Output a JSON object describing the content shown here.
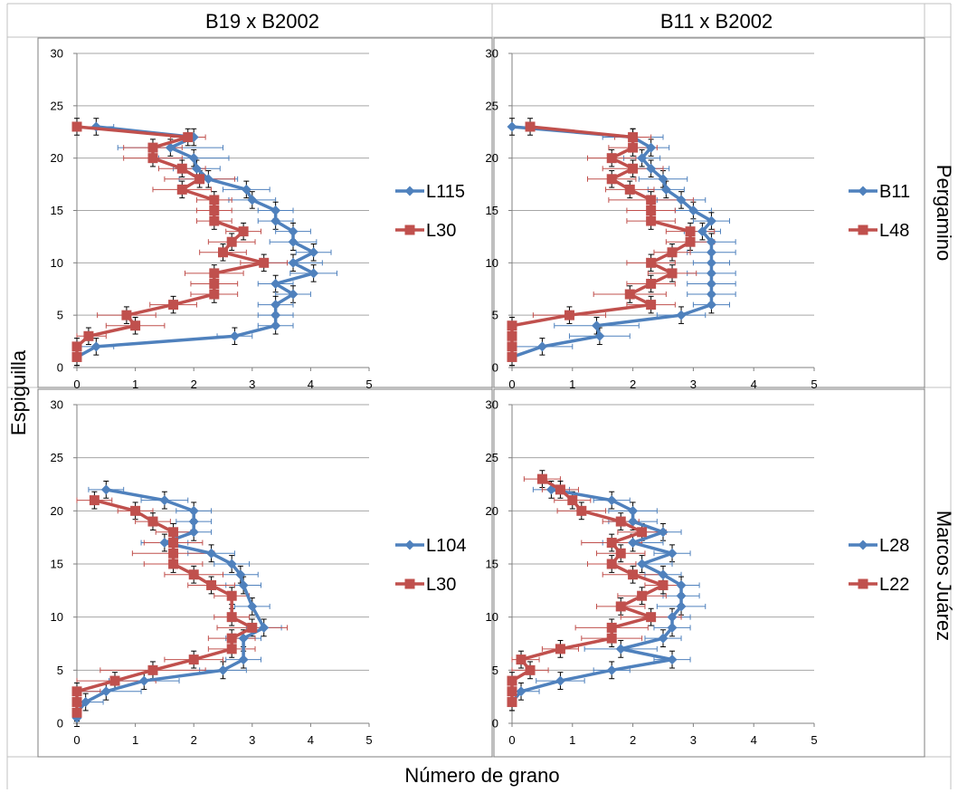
{
  "figure": {
    "column_headers": [
      "B19 x B2002",
      "B11 x B2002"
    ],
    "row_headers": [
      "Pergamino",
      "Marcos Juárez"
    ],
    "ylabel": "Espiguilla",
    "xlabel": "Número de grano"
  },
  "colors": {
    "blue_series": "#4F81BD",
    "red_series": "#C0504D",
    "grid": "#a6a6a6",
    "border": "#c0c0c0"
  },
  "chart_data": [
    {
      "type": "line",
      "panel": "B19 x B2002 / Pergamino",
      "xlim": [
        0,
        5
      ],
      "ylim": [
        0,
        30
      ],
      "xticks": [
        0,
        1,
        2,
        3,
        4,
        5
      ],
      "yticks": [
        0,
        5,
        10,
        15,
        20,
        25,
        30
      ],
      "grid": "horizontal",
      "legend": "right",
      "series": [
        {
          "name": "L115",
          "marker": "diamond",
          "x": [
            0.33,
            2.0,
            1.6,
            2.0,
            2.05,
            2.25,
            2.9,
            3.0,
            3.4,
            3.4,
            3.7,
            3.7,
            4.05,
            3.7,
            4.05,
            3.4,
            3.7,
            3.4,
            3.4,
            3.4,
            2.7,
            0.33,
            0.0
          ],
          "y": [
            23,
            22,
            21,
            20,
            19,
            18,
            17,
            16,
            15,
            14,
            13,
            12,
            11,
            10,
            9,
            8,
            7,
            6,
            5,
            4,
            3,
            2,
            1
          ],
          "err": [
            0.3,
            0.0,
            0.9,
            0.6,
            0.4,
            0.5,
            0.4,
            0.4,
            0.3,
            0.3,
            0.3,
            0.4,
            0.3,
            0.5,
            0.4,
            0.3,
            0.3,
            0.3,
            0.3,
            0.3,
            0.3,
            0.3,
            0.0
          ]
        },
        {
          "name": "L30",
          "marker": "square",
          "x": [
            0.0,
            1.9,
            1.3,
            1.3,
            1.8,
            2.1,
            1.8,
            2.35,
            2.35,
            2.35,
            2.85,
            2.65,
            2.5,
            3.2,
            2.35,
            2.35,
            2.35,
            1.65,
            0.85,
            1.0,
            0.2,
            0.0,
            0.0
          ],
          "y": [
            23,
            22,
            21,
            20,
            19,
            18,
            17,
            16,
            15,
            14,
            13,
            12,
            11,
            10,
            9,
            8,
            7,
            6,
            5,
            4,
            3,
            2,
            1
          ],
          "err": [
            0.0,
            0.3,
            0.5,
            0.5,
            0.4,
            0.6,
            0.5,
            0.3,
            0.3,
            0.3,
            0.3,
            0.4,
            0.4,
            0.4,
            0.5,
            0.4,
            0.4,
            0.4,
            0.5,
            0.5,
            0.3,
            0.0,
            0.0
          ]
        }
      ]
    },
    {
      "type": "line",
      "panel": "B11 x B2002 / Pergamino",
      "xlim": [
        0,
        5
      ],
      "ylim": [
        0,
        30
      ],
      "xticks": [
        0,
        1,
        2,
        3,
        4,
        5
      ],
      "yticks": [
        0,
        5,
        10,
        15,
        20,
        25,
        30
      ],
      "grid": "horizontal",
      "legend": "right",
      "series": [
        {
          "name": "B11",
          "marker": "diamond",
          "x": [
            0.0,
            2.0,
            2.3,
            2.15,
            2.3,
            2.5,
            2.55,
            2.8,
            3.0,
            3.3,
            3.15,
            3.3,
            3.3,
            3.3,
            3.3,
            3.3,
            3.3,
            3.3,
            2.8,
            1.4,
            1.45,
            0.5,
            0.0
          ],
          "y": [
            23,
            22,
            21,
            20,
            19,
            18,
            17,
            16,
            15,
            14,
            13,
            12,
            11,
            10,
            9,
            8,
            7,
            6,
            5,
            4,
            3,
            2,
            1
          ],
          "err": [
            0.0,
            0.5,
            0.3,
            0.3,
            0.3,
            0.4,
            0.3,
            0.4,
            0.3,
            0.3,
            0.3,
            0.4,
            0.4,
            0.3,
            0.4,
            0.4,
            0.4,
            0.3,
            0.4,
            0.7,
            0.5,
            0.5,
            0.0
          ]
        },
        {
          "name": "L48",
          "marker": "square",
          "x": [
            0.3,
            2.0,
            2.0,
            1.65,
            2.0,
            1.65,
            1.95,
            2.3,
            2.3,
            2.3,
            2.95,
            2.95,
            2.65,
            2.3,
            2.65,
            2.3,
            1.95,
            2.3,
            0.95,
            0.0,
            0.0,
            0.0,
            0.0
          ],
          "y": [
            23,
            22,
            21,
            20,
            19,
            18,
            17,
            16,
            15,
            14,
            13,
            12,
            11,
            10,
            9,
            8,
            7,
            6,
            5,
            4,
            3,
            2,
            1
          ],
          "err": [
            0.0,
            0.3,
            0.4,
            0.4,
            0.5,
            0.4,
            0.4,
            0.7,
            0.4,
            0.4,
            0.4,
            0.4,
            0.3,
            0.4,
            0.4,
            0.4,
            0.6,
            0.4,
            0.6,
            0.0,
            0.0,
            0.0,
            0.0
          ]
        }
      ]
    },
    {
      "type": "line",
      "panel": "B19 x B2002 / Marcos Juárez",
      "xlim": [
        0,
        5
      ],
      "ylim": [
        0,
        30
      ],
      "xticks": [
        0,
        1,
        2,
        3,
        4,
        5
      ],
      "yticks": [
        0,
        5,
        10,
        15,
        20,
        25,
        30
      ],
      "grid": "horizontal",
      "legend": "right",
      "series": [
        {
          "name": "L104",
          "marker": "diamond",
          "x": [
            0.5,
            1.5,
            2.0,
            2.0,
            2.0,
            1.5,
            2.3,
            2.65,
            2.8,
            2.85,
            3.0,
            3.2,
            2.85,
            2.85,
            2.5,
            1.15,
            0.5,
            0.15,
            0.0,
            0.0
          ],
          "y": [
            22,
            21,
            20,
            19,
            18,
            17,
            16,
            15,
            14,
            13,
            11,
            9,
            8,
            6,
            5,
            4,
            3,
            2,
            1,
            0.5
          ],
          "err": [
            0.3,
            0.4,
            0.3,
            0.3,
            0.3,
            0.4,
            0.4,
            0.3,
            0.3,
            0.3,
            0.3,
            0.3,
            0.3,
            0.3,
            0.4,
            0.6,
            0.6,
            0.3,
            0.0,
            0.0
          ]
        },
        {
          "name": "L30",
          "marker": "square",
          "x": [
            0.3,
            1.0,
            1.3,
            1.65,
            1.65,
            1.65,
            1.65,
            2.0,
            2.3,
            2.65,
            2.65,
            3.0,
            2.65,
            2.65,
            2.0,
            1.3,
            0.65,
            0.0,
            0.0,
            0.0
          ],
          "y": [
            21,
            20,
            19,
            18,
            17,
            16,
            15,
            14,
            13,
            12,
            10,
            9,
            8,
            7,
            6,
            5,
            4,
            3,
            2,
            1
          ],
          "err": [
            0.3,
            0.3,
            0.3,
            0.3,
            0.5,
            0.7,
            0.5,
            0.5,
            0.4,
            0.3,
            0.3,
            0.6,
            0.4,
            0.4,
            0.5,
            0.9,
            0.7,
            0.4,
            0.0,
            0.0
          ]
        }
      ]
    },
    {
      "type": "line",
      "panel": "B11 x B2002 / Marcos Juárez",
      "xlim": [
        0,
        5
      ],
      "ylim": [
        0,
        30
      ],
      "xticks": [
        0,
        1,
        2,
        3,
        4,
        5
      ],
      "yticks": [
        0,
        5,
        10,
        15,
        20,
        25,
        30
      ],
      "grid": "horizontal",
      "legend": "right",
      "series": [
        {
          "name": "L28",
          "marker": "diamond",
          "x": [
            0.65,
            1.65,
            2.0,
            2.0,
            2.5,
            2.0,
            2.65,
            2.15,
            2.5,
            2.8,
            2.8,
            2.8,
            2.65,
            2.65,
            2.5,
            1.8,
            2.65,
            1.65,
            0.8,
            0.15,
            0.0
          ],
          "y": [
            22,
            21,
            20,
            19,
            18,
            17,
            16,
            15,
            14,
            13,
            12,
            11,
            10,
            9,
            8,
            7,
            6,
            5,
            4,
            3,
            2
          ],
          "err": [
            0.3,
            0.3,
            0.4,
            0.4,
            0.3,
            0.5,
            0.3,
            0.5,
            0.3,
            0.3,
            0.3,
            0.4,
            0.3,
            0.3,
            0.3,
            0.6,
            0.3,
            0.3,
            0.4,
            0.3,
            0.0
          ]
        },
        {
          "name": "L22",
          "marker": "square",
          "x": [
            0.5,
            0.8,
            1.0,
            1.15,
            1.8,
            2.15,
            1.65,
            1.8,
            1.65,
            2.0,
            2.5,
            2.15,
            1.8,
            2.3,
            1.65,
            1.65,
            0.8,
            0.15,
            0.3,
            0.0,
            0.0,
            0.0
          ],
          "y": [
            23,
            22,
            21,
            20,
            19,
            18,
            17,
            16,
            15,
            14,
            13,
            12,
            11,
            10,
            9,
            8,
            7,
            6,
            5,
            4,
            3,
            2
          ],
          "err": [
            0.3,
            0.3,
            0.3,
            0.4,
            0.3,
            0.4,
            0.5,
            0.4,
            0.4,
            0.5,
            0.3,
            0.4,
            0.4,
            0.5,
            0.6,
            0.5,
            0.3,
            0.3,
            0.3,
            0.0,
            0.0,
            0.0
          ]
        }
      ]
    }
  ]
}
